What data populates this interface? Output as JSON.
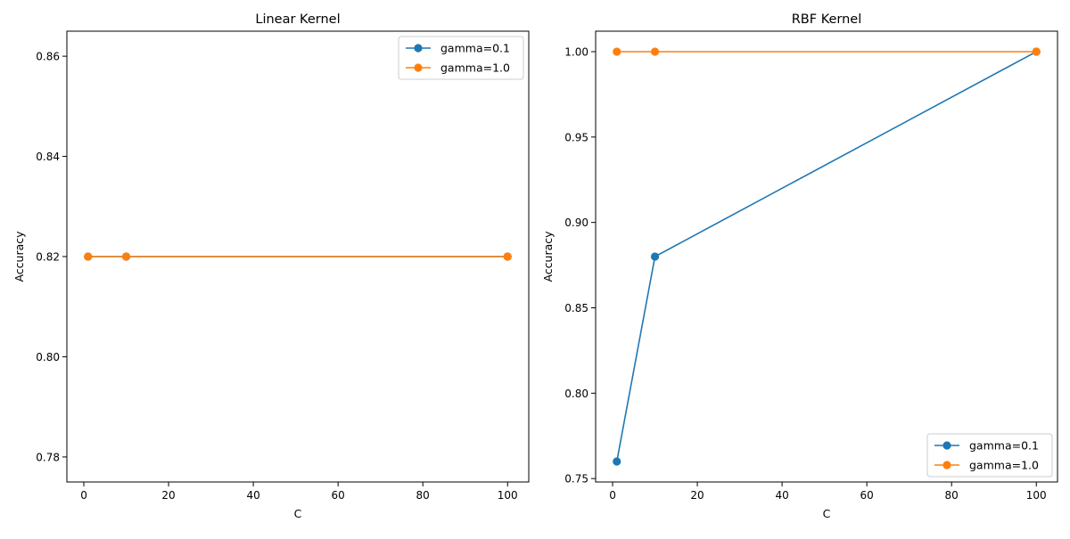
{
  "colors": {
    "gamma_0_1": "#1f77b4",
    "gamma_1_0": "#ff7f0e"
  },
  "chart_data": [
    {
      "type": "line",
      "title": "Linear Kernel",
      "xlabel": "C",
      "ylabel": "Accuracy",
      "xlim": [
        -4.0,
        105.0
      ],
      "ylim": [
        0.775,
        0.865
      ],
      "xticks": [
        0,
        20,
        40,
        60,
        80,
        100
      ],
      "yticks": [
        0.78,
        0.8,
        0.82,
        0.84,
        0.86
      ],
      "xtick_labels": [
        "0",
        "20",
        "40",
        "60",
        "80",
        "100"
      ],
      "ytick_labels": [
        "0.78",
        "0.80",
        "0.82",
        "0.84",
        "0.86"
      ],
      "grid": false,
      "legend": "upper right",
      "series": [
        {
          "name": "gamma=0.1",
          "color": "#1f77b4",
          "x": [
            1,
            10,
            100
          ],
          "y": [
            0.82,
            0.82,
            0.82
          ]
        },
        {
          "name": "gamma=1.0",
          "color": "#ff7f0e",
          "x": [
            1,
            10,
            100
          ],
          "y": [
            0.82,
            0.82,
            0.82
          ]
        }
      ]
    },
    {
      "type": "line",
      "title": "RBF Kernel",
      "xlabel": "C",
      "ylabel": "Accuracy",
      "xlim": [
        -4.0,
        105.0
      ],
      "ylim": [
        0.748,
        1.012
      ],
      "xticks": [
        0,
        20,
        40,
        60,
        80,
        100
      ],
      "yticks": [
        0.75,
        0.8,
        0.85,
        0.9,
        0.95,
        1.0
      ],
      "xtick_labels": [
        "0",
        "20",
        "40",
        "60",
        "80",
        "100"
      ],
      "ytick_labels": [
        "0.75",
        "0.80",
        "0.85",
        "0.90",
        "0.95",
        "1.00"
      ],
      "grid": false,
      "legend": "lower right",
      "series": [
        {
          "name": "gamma=0.1",
          "color": "#1f77b4",
          "x": [
            1,
            10,
            100
          ],
          "y": [
            0.76,
            0.88,
            1.0
          ]
        },
        {
          "name": "gamma=1.0",
          "color": "#ff7f0e",
          "x": [
            1,
            10,
            100
          ],
          "y": [
            1.0,
            1.0,
            1.0
          ]
        }
      ]
    }
  ]
}
